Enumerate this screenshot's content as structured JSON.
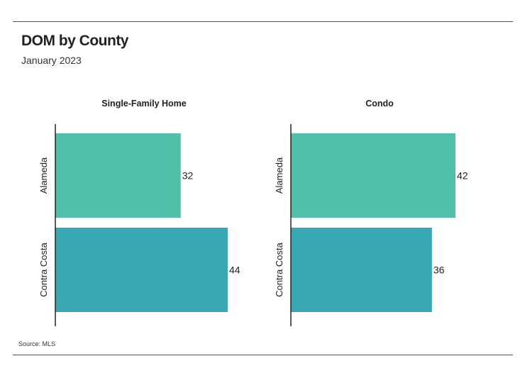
{
  "header": {
    "title": "DOM by County",
    "subtitle": "January 2023"
  },
  "footer": {
    "source": "Source: MLS"
  },
  "colors": {
    "alameda": "#52bfa9",
    "contra_costa": "#3aa8b3",
    "axis": "#222222"
  },
  "chart_data": [
    {
      "type": "bar",
      "orientation": "horizontal",
      "title": "Single-Family Home",
      "categories": [
        "Alameda",
        "Contra Costa"
      ],
      "values": [
        32,
        44
      ],
      "xlim": [
        0,
        44
      ],
      "grid": false
    },
    {
      "type": "bar",
      "orientation": "horizontal",
      "title": "Condo",
      "categories": [
        "Alameda",
        "Contra Costa"
      ],
      "values": [
        42,
        36
      ],
      "xlim": [
        0,
        42
      ],
      "grid": false
    }
  ]
}
